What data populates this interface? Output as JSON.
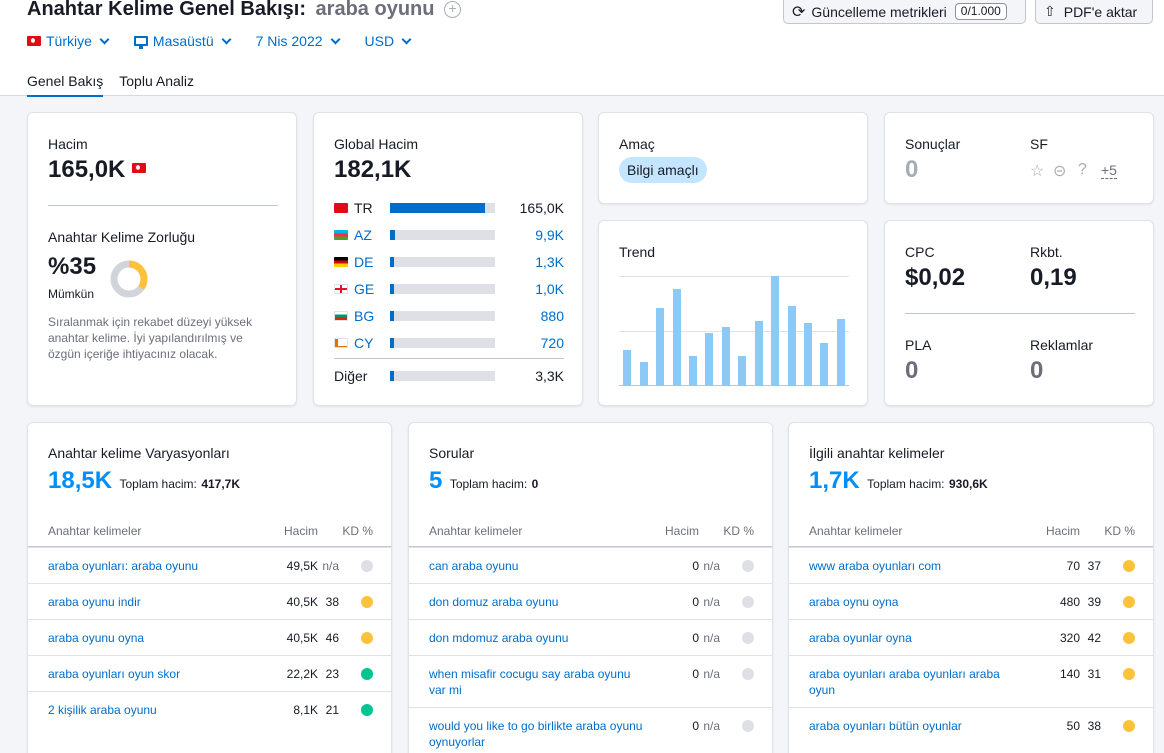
{
  "header": {
    "title": "Anahtar Kelime Genel Bakışı:",
    "keyword": "araba oyunu",
    "update_btn": "Güncelleme metrikleri",
    "update_count": "0/1.000",
    "pdf_btn": "PDF'e aktar",
    "filters": {
      "country": "Türkiye",
      "device": "Masaüstü",
      "date": "7 Nis 2022",
      "currency": "USD"
    },
    "tabs": [
      "Genel Bakış",
      "Toplu Analiz"
    ]
  },
  "volume": {
    "label": "Hacim",
    "value": "165,0K",
    "kd_label": "Anahtar Kelime Zorluğu",
    "kd_value": "%35",
    "kd_level": "Mümkün",
    "kd_percent": 35,
    "kd_desc": "Sıralanmak için rekabet düzeyi yüksek anahtar kelime. İyi yapılandırılmış ve özgün içeriğe ihtiyacınız olacak."
  },
  "global": {
    "label": "Global Hacim",
    "value": "182,1K",
    "countries": [
      {
        "code": "TR",
        "value": "165,0K",
        "share": 0.9
      },
      {
        "code": "AZ",
        "value": "9,9K",
        "share": 0.05
      },
      {
        "code": "DE",
        "value": "1,3K",
        "share": 0.02
      },
      {
        "code": "GE",
        "value": "1,0K",
        "share": 0.02
      },
      {
        "code": "BG",
        "value": "880",
        "share": 0.02
      },
      {
        "code": "CY",
        "value": "720",
        "share": 0.02
      }
    ],
    "other_label": "Diğer",
    "other_value": "3,3K",
    "other_share": 0.02
  },
  "intent": {
    "label": "Amaç",
    "badge": "Bilgi amaçlı"
  },
  "trend": {
    "label": "Trend",
    "values": [
      0.33,
      0.22,
      0.71,
      0.88,
      0.27,
      0.48,
      0.54,
      0.27,
      0.59,
      1.0,
      0.73,
      0.57,
      0.39,
      0.61
    ]
  },
  "results": {
    "label": "Sonuçlar",
    "value": "0",
    "sf_label": "SF",
    "sf_more": "+5"
  },
  "cpc": {
    "cpc_label": "CPC",
    "cpc_value": "$0,02",
    "comp_label": "Rkbt.",
    "comp_value": "0,19",
    "pla_label": "PLA",
    "pla_value": "0",
    "ads_label": "Reklamlar",
    "ads_value": "0"
  },
  "variations": {
    "title": "Anahtar kelime Varyasyonları",
    "count": "18,5K",
    "total_label": "Toplam hacim:",
    "total_value": "417,7K",
    "col_kw": "Anahtar kelimeler",
    "col_vol": "Hacim",
    "col_kd": "KD %",
    "rows": [
      {
        "kw": "araba oyunları: araba oyunu",
        "vol": "49,5K",
        "kd": "n/a",
        "color": "#dfe0e5"
      },
      {
        "kw": "araba oyunu indir",
        "vol": "40,5K",
        "kd": "38",
        "color": "#fdc23c"
      },
      {
        "kw": "araba oyunu oyna",
        "vol": "40,5K",
        "kd": "46",
        "color": "#fdc23c"
      },
      {
        "kw": "araba oyunları oyun skor",
        "vol": "22,2K",
        "kd": "23",
        "color": "#00c591"
      },
      {
        "kw": "2 kişilik araba oyunu",
        "vol": "8,1K",
        "kd": "21",
        "color": "#00c591"
      }
    ]
  },
  "questions": {
    "title": "Sorular",
    "count": "5",
    "total_label": "Toplam hacim:",
    "total_value": "0",
    "col_kw": "Anahtar kelimeler",
    "col_vol": "Hacim",
    "col_kd": "KD %",
    "rows": [
      {
        "kw": "can araba oyunu",
        "vol": "0",
        "kd": "n/a",
        "color": "#dfe0e5"
      },
      {
        "kw": "don domuz araba oyunu",
        "vol": "0",
        "kd": "n/a",
        "color": "#dfe0e5"
      },
      {
        "kw": "don mdomuz araba oyunu",
        "vol": "0",
        "kd": "n/a",
        "color": "#dfe0e5"
      },
      {
        "kw": "when misafir cocugu say araba oyunu var mi",
        "vol": "0",
        "kd": "n/a",
        "color": "#dfe0e5"
      },
      {
        "kw": "would you like to go birlikte araba oyunu oynuyorlar",
        "vol": "0",
        "kd": "n/a",
        "color": "#dfe0e5"
      }
    ]
  },
  "related": {
    "title": "İlgili anahtar kelimeler",
    "count": "1,7K",
    "total_label": "Toplam hacim:",
    "total_value": "930,6K",
    "col_kw": "Anahtar kelimeler",
    "col_vol": "Hacim",
    "col_kd": "KD %",
    "rows": [
      {
        "kw": "www araba oyunları com",
        "vol": "70",
        "kd": "37",
        "color": "#fdc23c"
      },
      {
        "kw": "araba oynu oyna",
        "vol": "480",
        "kd": "39",
        "color": "#fdc23c"
      },
      {
        "kw": "araba oyunlar oyna",
        "vol": "320",
        "kd": "42",
        "color": "#fdc23c"
      },
      {
        "kw": "araba oyunları araba oyunları araba oyun",
        "vol": "140",
        "kd": "31",
        "color": "#fdc23c"
      },
      {
        "kw": "araba oyunları bütün oyunlar",
        "vol": "50",
        "kd": "38",
        "color": "#fdc23c"
      }
    ]
  }
}
